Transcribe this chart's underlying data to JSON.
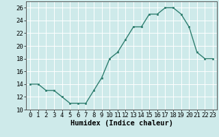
{
  "x": [
    0,
    1,
    2,
    3,
    4,
    5,
    6,
    7,
    8,
    9,
    10,
    11,
    12,
    13,
    14,
    15,
    16,
    17,
    18,
    19,
    20,
    21,
    22,
    23
  ],
  "y": [
    14,
    14,
    13,
    13,
    12,
    11,
    11,
    11,
    13,
    15,
    18,
    19,
    21,
    23,
    23,
    25,
    25,
    26,
    26,
    25,
    23,
    19,
    18,
    18
  ],
  "line_color": "#2d7d6e",
  "marker_color": "#2d7d6e",
  "bg_color": "#ceeaea",
  "grid_color": "#ffffff",
  "xlabel": "Humidex (Indice chaleur)",
  "xlabel_fontsize": 7.5,
  "ylim": [
    10,
    27
  ],
  "yticks": [
    10,
    12,
    14,
    16,
    18,
    20,
    22,
    24,
    26
  ],
  "xtick_labels": [
    "0",
    "1",
    "2",
    "3",
    "4",
    "5",
    "6",
    "7",
    "8",
    "9",
    "10",
    "11",
    "12",
    "13",
    "14",
    "15",
    "16",
    "17",
    "18",
    "19",
    "20",
    "21",
    "22",
    "23"
  ],
  "tick_fontsize": 6.5,
  "grid_linewidth": 0.7
}
